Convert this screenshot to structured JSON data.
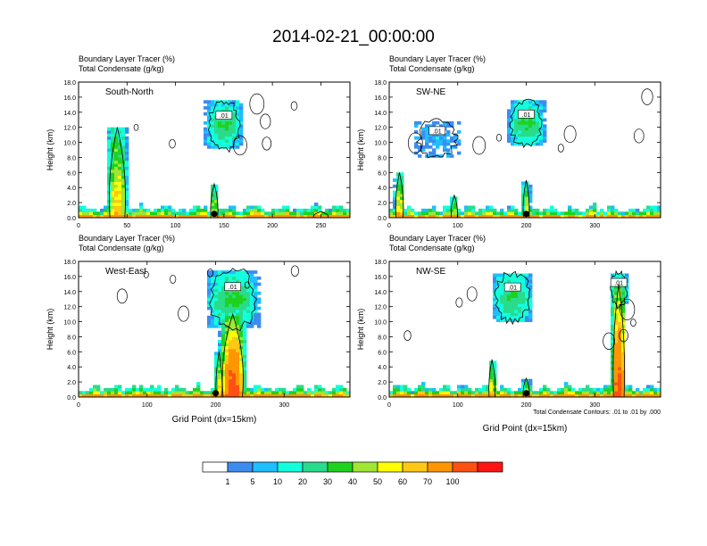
{
  "figure": {
    "title": "2014-02-21_00:00:00",
    "footnote": "Total Condensate Contours: .01 to .01 by .000"
  },
  "colorbar": {
    "levels": [
      "1",
      "5",
      "10",
      "20",
      "30",
      "40",
      "50",
      "60",
      "70",
      "100"
    ],
    "colors": [
      "#ffffff",
      "#3c8cf0",
      "#1ebeff",
      "#14ffdc",
      "#28dc8c",
      "#1ed21e",
      "#a0e632",
      "#ffff00",
      "#ffc814",
      "#ff9600",
      "#ff5014",
      "#ff1414"
    ]
  },
  "contour_label": ".01",
  "chart_data": [
    {
      "type": "heatmap",
      "subtitle": [
        "Boundary Layer Tracer   (%)",
        "Total Condensate   (g/kg)"
      ],
      "panel_label": "South-North",
      "ylabel": "Height (km)",
      "xlabel": "",
      "xlim": [
        0,
        280
      ],
      "xticks": [
        "0",
        "50",
        "100",
        "150",
        "200",
        "250"
      ],
      "xtick_values": [
        0,
        50,
        100,
        150,
        200,
        250
      ],
      "ylim": [
        0,
        18
      ],
      "yticks": [
        "0.0",
        "2.0",
        "4.0",
        "6.0",
        "8.0",
        "10.0",
        "12.0",
        "14.0",
        "16.0",
        "18.0"
      ],
      "marker_x": 140,
      "plumes": [
        {
          "x": 40,
          "width": 22,
          "top": 12,
          "peak": 60
        },
        {
          "x": 140,
          "width": 10,
          "top": 4.5,
          "peak": 50
        },
        {
          "x": 250,
          "width": 20,
          "top": 0.8,
          "peak": 70
        }
      ],
      "anvils": [
        {
          "x": 150,
          "width": 35,
          "base": 9,
          "top": 15.5,
          "peak": 30
        }
      ]
    },
    {
      "type": "heatmap",
      "subtitle": [
        "Boundary Layer Tracer   (%)",
        "Total Condensate   (g/kg)"
      ],
      "panel_label": "SW-NE",
      "ylabel": "Height (km)",
      "xlabel": "",
      "xlim": [
        0,
        396
      ],
      "xticks": [
        "0",
        "100",
        "200",
        "300"
      ],
      "xtick_values": [
        0,
        100,
        200,
        300
      ],
      "ylim": [
        0,
        18
      ],
      "yticks": [
        "0.0",
        "2.0",
        "4.0",
        "6.0",
        "8.0",
        "10.0",
        "12.0",
        "14.0",
        "16.0",
        "18.0"
      ],
      "marker_x": 200,
      "plumes": [
        {
          "x": 15,
          "width": 15,
          "top": 6,
          "peak": 60
        },
        {
          "x": 95,
          "width": 12,
          "top": 3,
          "peak": 50
        },
        {
          "x": 200,
          "width": 12,
          "top": 5,
          "peak": 50
        }
      ],
      "anvils": [
        {
          "x": 200,
          "width": 50,
          "base": 9.5,
          "top": 15.5,
          "peak": 30
        },
        {
          "x": 70,
          "width": 60,
          "base": 8,
          "top": 13,
          "peak": 5
        }
      ]
    },
    {
      "type": "heatmap",
      "subtitle": [
        "Boundary Layer Tracer   (%)",
        "Total Condensate   (g/kg)"
      ],
      "panel_label": "West-East",
      "ylabel": "Height (km)",
      "xlabel": "Grid Point (dx=15km)",
      "xlim": [
        0,
        396
      ],
      "xticks": [
        "0",
        "100",
        "200",
        "300"
      ],
      "xtick_values": [
        0,
        100,
        200,
        300
      ],
      "ylim": [
        0,
        18
      ],
      "yticks": [
        "0.0",
        "2.0",
        "4.0",
        "6.0",
        "8.0",
        "10.0",
        "12.0",
        "14.0",
        "16.0",
        "18.0"
      ],
      "marker_x": 200,
      "plumes": [
        {
          "x": 225,
          "width": 40,
          "top": 11,
          "peak": 100
        },
        {
          "x": 205,
          "width": 12,
          "top": 6,
          "peak": 60
        }
      ],
      "anvils": [
        {
          "x": 225,
          "width": 70,
          "base": 9,
          "top": 17,
          "peak": 30
        }
      ]
    },
    {
      "type": "heatmap",
      "subtitle": [
        "Boundary Layer Tracer   (%)",
        "Total Condensate   (g/kg)"
      ],
      "panel_label": "NW-SE",
      "ylabel": "Height (km)",
      "xlabel": "Grid Point (dx=15km)",
      "xlim": [
        0,
        396
      ],
      "xticks": [
        "0",
        "100",
        "200",
        "300"
      ],
      "xtick_values": [
        0,
        100,
        200,
        300
      ],
      "ylim": [
        0,
        18
      ],
      "yticks": [
        "0.0",
        "2.0",
        "4.0",
        "6.0",
        "8.0",
        "10.0",
        "12.0",
        "14.0",
        "16.0",
        "18.0"
      ],
      "marker_x": 200,
      "plumes": [
        {
          "x": 335,
          "width": 22,
          "top": 15,
          "peak": 100
        },
        {
          "x": 150,
          "width": 12,
          "top": 5,
          "peak": 60
        },
        {
          "x": 200,
          "width": 12,
          "top": 2.5,
          "peak": 50
        }
      ],
      "anvils": [
        {
          "x": 180,
          "width": 55,
          "base": 10,
          "top": 16.5,
          "peak": 30
        },
        {
          "x": 335,
          "width": 25,
          "base": 12,
          "top": 16.5,
          "peak": 30
        }
      ]
    }
  ]
}
